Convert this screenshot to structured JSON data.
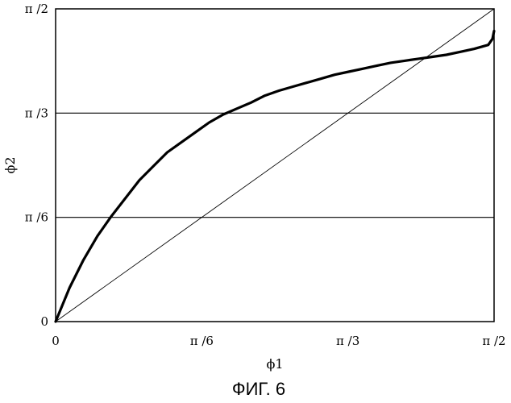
{
  "chart_data": {
    "type": "line",
    "xlabel": "ϕ1",
    "ylabel": "ϕ2",
    "x_ticks": [
      "0",
      "π /6",
      "π /3",
      "π /2"
    ],
    "y_ticks": [
      "0",
      "π /6",
      "π /3",
      "π /2"
    ],
    "xlim": [
      0,
      1.5708
    ],
    "ylim": [
      0,
      1.5708
    ],
    "grid": "horizontal",
    "series": [
      {
        "x": [
          0,
          0.05,
          0.1,
          0.15,
          0.2,
          0.25,
          0.3,
          0.35,
          0.4,
          0.45,
          0.5,
          0.55,
          0.6,
          0.65,
          0.7,
          0.75,
          0.8,
          0.85,
          0.9,
          0.95,
          1.0,
          1.05,
          1.1,
          1.15,
          1.2,
          1.25,
          1.3,
          1.35,
          1.4,
          1.45,
          1.5,
          1.55,
          1.565,
          1.5708
        ],
        "y": [
          0,
          0.17,
          0.31,
          0.43,
          0.53,
          0.62,
          0.71,
          0.78,
          0.85,
          0.9,
          0.95,
          1.0,
          1.04,
          1.07,
          1.1,
          1.135,
          1.16,
          1.18,
          1.2,
          1.22,
          1.24,
          1.255,
          1.27,
          1.285,
          1.3,
          1.31,
          1.32,
          1.33,
          1.34,
          1.355,
          1.37,
          1.39,
          1.42,
          1.46
        ]
      },
      {
        "x": [
          0,
          1.5708
        ],
        "y": [
          0,
          1.5708
        ]
      }
    ]
  },
  "figure_caption": "ФИГ. 6"
}
